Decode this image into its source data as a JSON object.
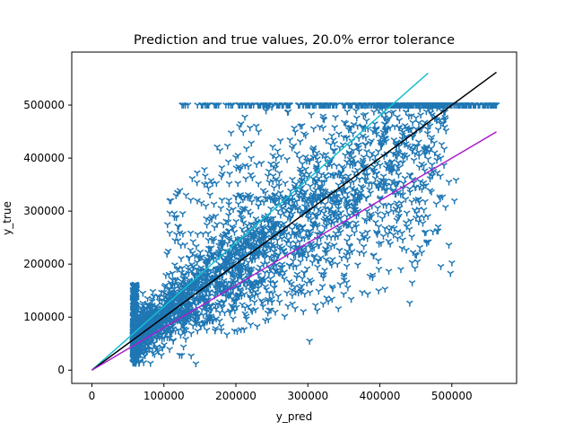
{
  "chart_data": {
    "type": "scatter",
    "title": "Prediction and true values, 20.0% error tolerance",
    "xlabel": "y_pred",
    "ylabel": "y_true",
    "xlim": [
      -28000,
      590000
    ],
    "ylim": [
      -25000,
      600000
    ],
    "xticks": [
      0,
      100000,
      200000,
      300000,
      400000,
      500000
    ],
    "yticks": [
      0,
      100000,
      200000,
      300000,
      400000,
      500000
    ],
    "xtick_labels": [
      "0",
      "100000",
      "200000",
      "300000",
      "400000",
      "500000"
    ],
    "ytick_labels": [
      "0",
      "100000",
      "200000",
      "300000",
      "400000",
      "500000"
    ],
    "grid": false,
    "marker": "tri_down",
    "colors": {
      "points": "#1f77b4",
      "upper_line": "#17becf",
      "identity_line": "#000000",
      "lower_line": "#aa22cc"
    },
    "lines": [
      {
        "role": "upper tolerance (y = 1.2·x)",
        "x": [
          0,
          467000
        ],
        "y": [
          0,
          560400
        ],
        "color": "#17becf"
      },
      {
        "role": "identity (y = x)",
        "x": [
          0,
          562000
        ],
        "y": [
          0,
          562000
        ],
        "color": "#000000"
      },
      {
        "role": "lower tolerance (y = 0.8·x)",
        "x": [
          0,
          562000
        ],
        "y": [
          0,
          449600
        ],
        "color": "#aa22cc"
      }
    ],
    "scatter": {
      "x_min": 57000,
      "x_max": 562000,
      "y_cap": 500000,
      "cap_x_range": [
        120000,
        562000
      ]
    }
  }
}
